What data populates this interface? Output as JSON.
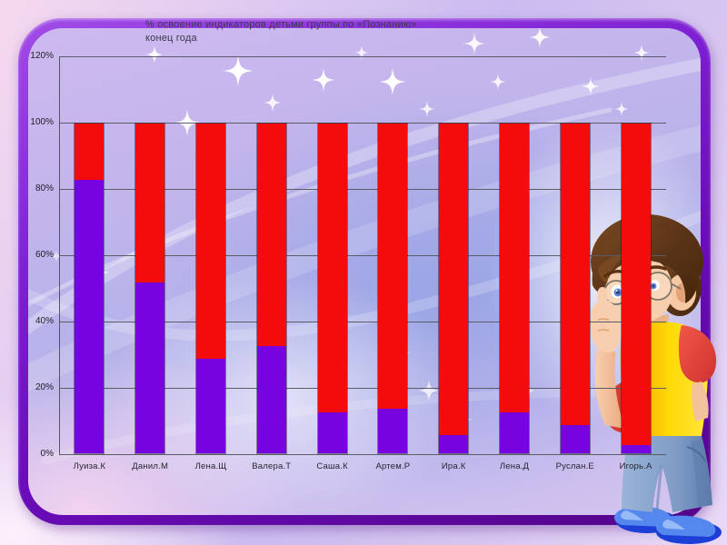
{
  "slide": {
    "title_line1": "% освоение индикаторов детьми группы по «Познанию»",
    "title_line2": "конец года"
  },
  "chart_data": {
    "type": "bar",
    "stacked": true,
    "title": "% освоение индикаторов детьми группы по «Познанию» конец года",
    "xlabel": "",
    "ylabel": "",
    "ylim": [
      0,
      120
    ],
    "yticks": [
      "0%",
      "20%",
      "40%",
      "60%",
      "80%",
      "100%",
      "120%"
    ],
    "grid": true,
    "legend": false,
    "categories": [
      "Луиза.К",
      "Данил.М",
      "Лена.Щ",
      "Валера.Т",
      "Саша.К",
      "Артем.Р",
      "Ира.К",
      "Лена.Д",
      "Руслан.Е",
      "Игорь.А"
    ],
    "series": [
      {
        "name": "violet (bottom segment)",
        "color": "#7603e0",
        "values": [
          83,
          52,
          29,
          33,
          13,
          14,
          6,
          13,
          9,
          3
        ]
      },
      {
        "name": "red (top segment)",
        "color": "#f40b0b",
        "values": [
          17,
          48,
          71,
          67,
          87,
          86,
          94,
          87,
          91,
          97
        ]
      }
    ]
  },
  "colors": {
    "frame_purple": "#6a0cbb",
    "grid_line": "#5c5c66"
  }
}
